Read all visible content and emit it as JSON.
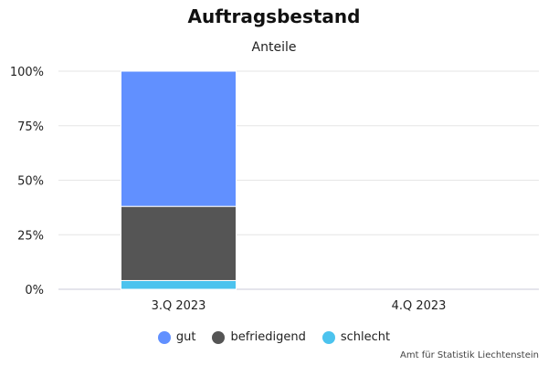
{
  "title": "Auftragsbestand",
  "subtitle": "Anteile",
  "source": "Amt für Statistik Liechtenstein",
  "chart_data": {
    "type": "bar",
    "stacked": true,
    "title": "Auftragsbestand",
    "subtitle": "Anteile",
    "categories": [
      "3.Q 2023",
      "4.Q 2023"
    ],
    "y_ticks": [
      "0%",
      "25%",
      "50%",
      "75%",
      "100%"
    ],
    "ylim": [
      0,
      100
    ],
    "grid": true,
    "legend_position": "bottom",
    "series": [
      {
        "name": "schlecht",
        "color": "#4cc3ee",
        "values": [
          4,
          null
        ]
      },
      {
        "name": "befriedigend",
        "color": "#555555",
        "values": [
          34,
          null
        ]
      },
      {
        "name": "gut",
        "color": "#6190ff",
        "values": [
          62,
          null
        ]
      }
    ],
    "legend_order": [
      "gut",
      "befriedigend",
      "schlecht"
    ]
  }
}
